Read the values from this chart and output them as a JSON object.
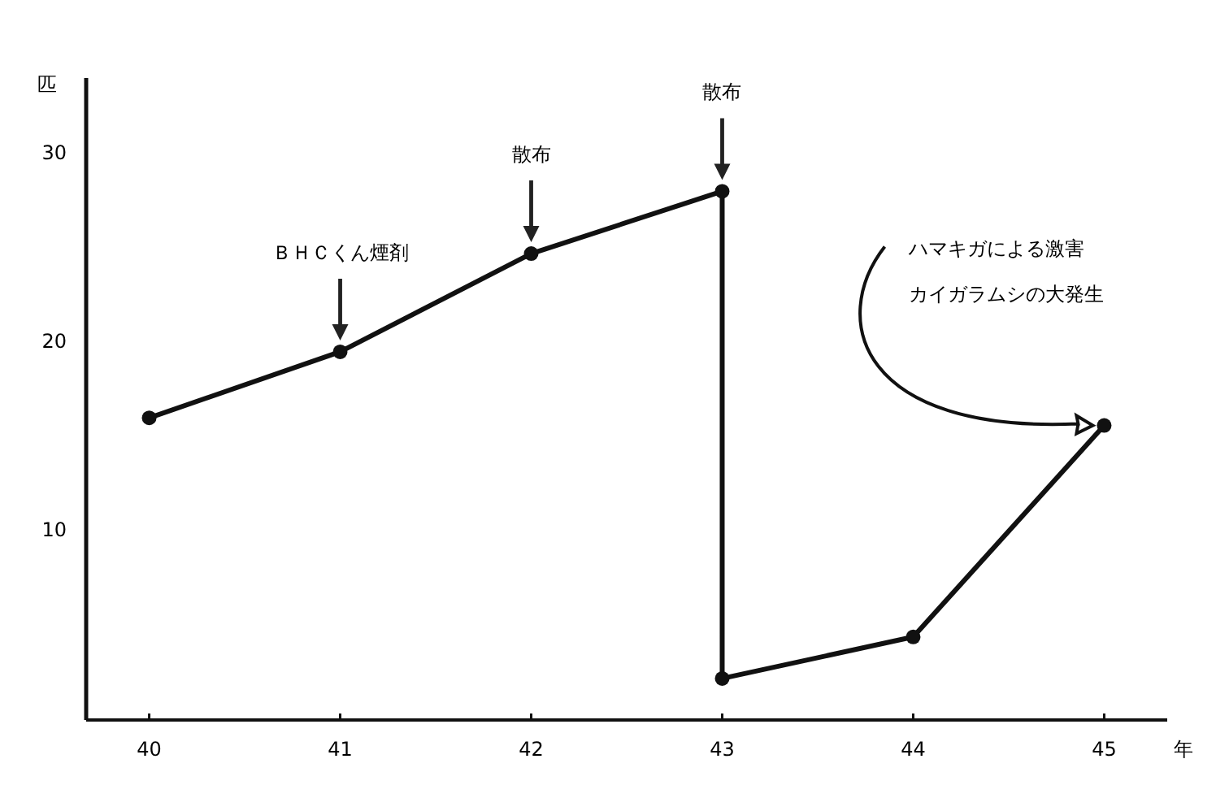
{
  "chart_data": {
    "type": "line",
    "xlabel": "年",
    "ylabel": "匹",
    "x": [
      40,
      41,
      42,
      43,
      43,
      44,
      45
    ],
    "series": [
      {
        "color": "#111111",
        "values": [
          16,
          19.5,
          24.7,
          28,
          2.2,
          4.4,
          15.6
        ]
      }
    ],
    "xlim": [
      39.67,
      45.33
    ],
    "xticks": [
      40,
      41,
      42,
      43,
      44,
      45
    ],
    "ylim": [
      0,
      34
    ],
    "yticks": [
      10,
      20,
      30
    ],
    "marker": "circle",
    "line_style": "solid",
    "grid": false,
    "annotations": [
      "ＢＨＣくん煙剤",
      "散布",
      "散布",
      "ハマキガによる激害",
      "カイガラムシの大発生"
    ]
  }
}
